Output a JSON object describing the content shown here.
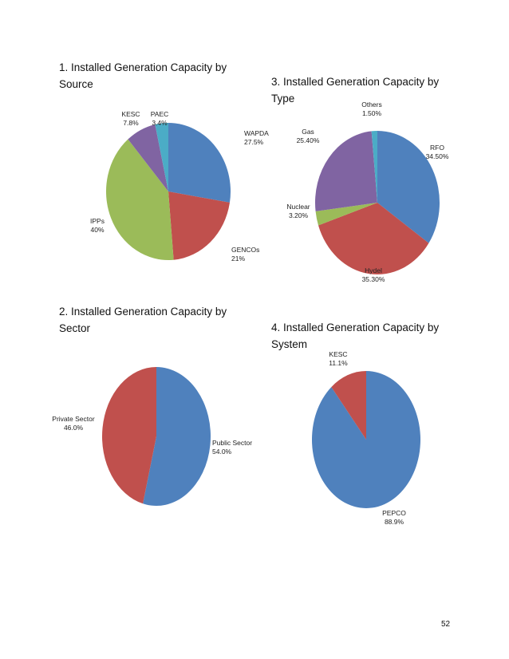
{
  "chart_data": [
    {
      "type": "pie",
      "title": "1. Installed Generation Capacity by\nSource",
      "labels": [
        "WAPDA",
        "GENCOs",
        "IPPs",
        "KESC",
        "PAEC"
      ],
      "value_labels": [
        "27.5%",
        "21%",
        "40%",
        "7.8%",
        "3.4%"
      ],
      "values": [
        27.5,
        21,
        40,
        7.8,
        3.4
      ],
      "colors": [
        "#4f81bd",
        "#c0504d",
        "#9bbb59",
        "#8064a2",
        "#4bacc6"
      ]
    },
    {
      "type": "pie",
      "title": "2. Installed Generation Capacity by\nSector",
      "labels": [
        "Public Sector",
        "Private Sector"
      ],
      "value_labels": [
        "54.0%",
        "46.0%"
      ],
      "values": [
        54.0,
        46.0
      ],
      "colors": [
        "#4f81bd",
        "#c0504d"
      ]
    },
    {
      "type": "pie",
      "title": "3. Installed Generation Capacity by\nType",
      "labels": [
        "RFO",
        "Hydel",
        "Nuclear",
        "Gas",
        "Others"
      ],
      "value_labels": [
        "34.50%",
        "35.30%",
        "3.20%",
        "25.40%",
        "1.50%"
      ],
      "values": [
        34.5,
        35.3,
        3.2,
        25.4,
        1.5
      ],
      "colors": [
        "#4f81bd",
        "#c0504d",
        "#9bbb59",
        "#8064a2",
        "#4bacc6"
      ]
    },
    {
      "type": "pie",
      "title": "4. Installed Generation Capacity by\nSystem",
      "labels": [
        "PEPCO",
        "KESC"
      ],
      "value_labels": [
        "88.9%",
        "11.1%"
      ],
      "values": [
        88.9,
        11.1
      ],
      "colors": [
        "#4f81bd",
        "#c0504d"
      ]
    }
  ],
  "page": {
    "number": "52"
  }
}
